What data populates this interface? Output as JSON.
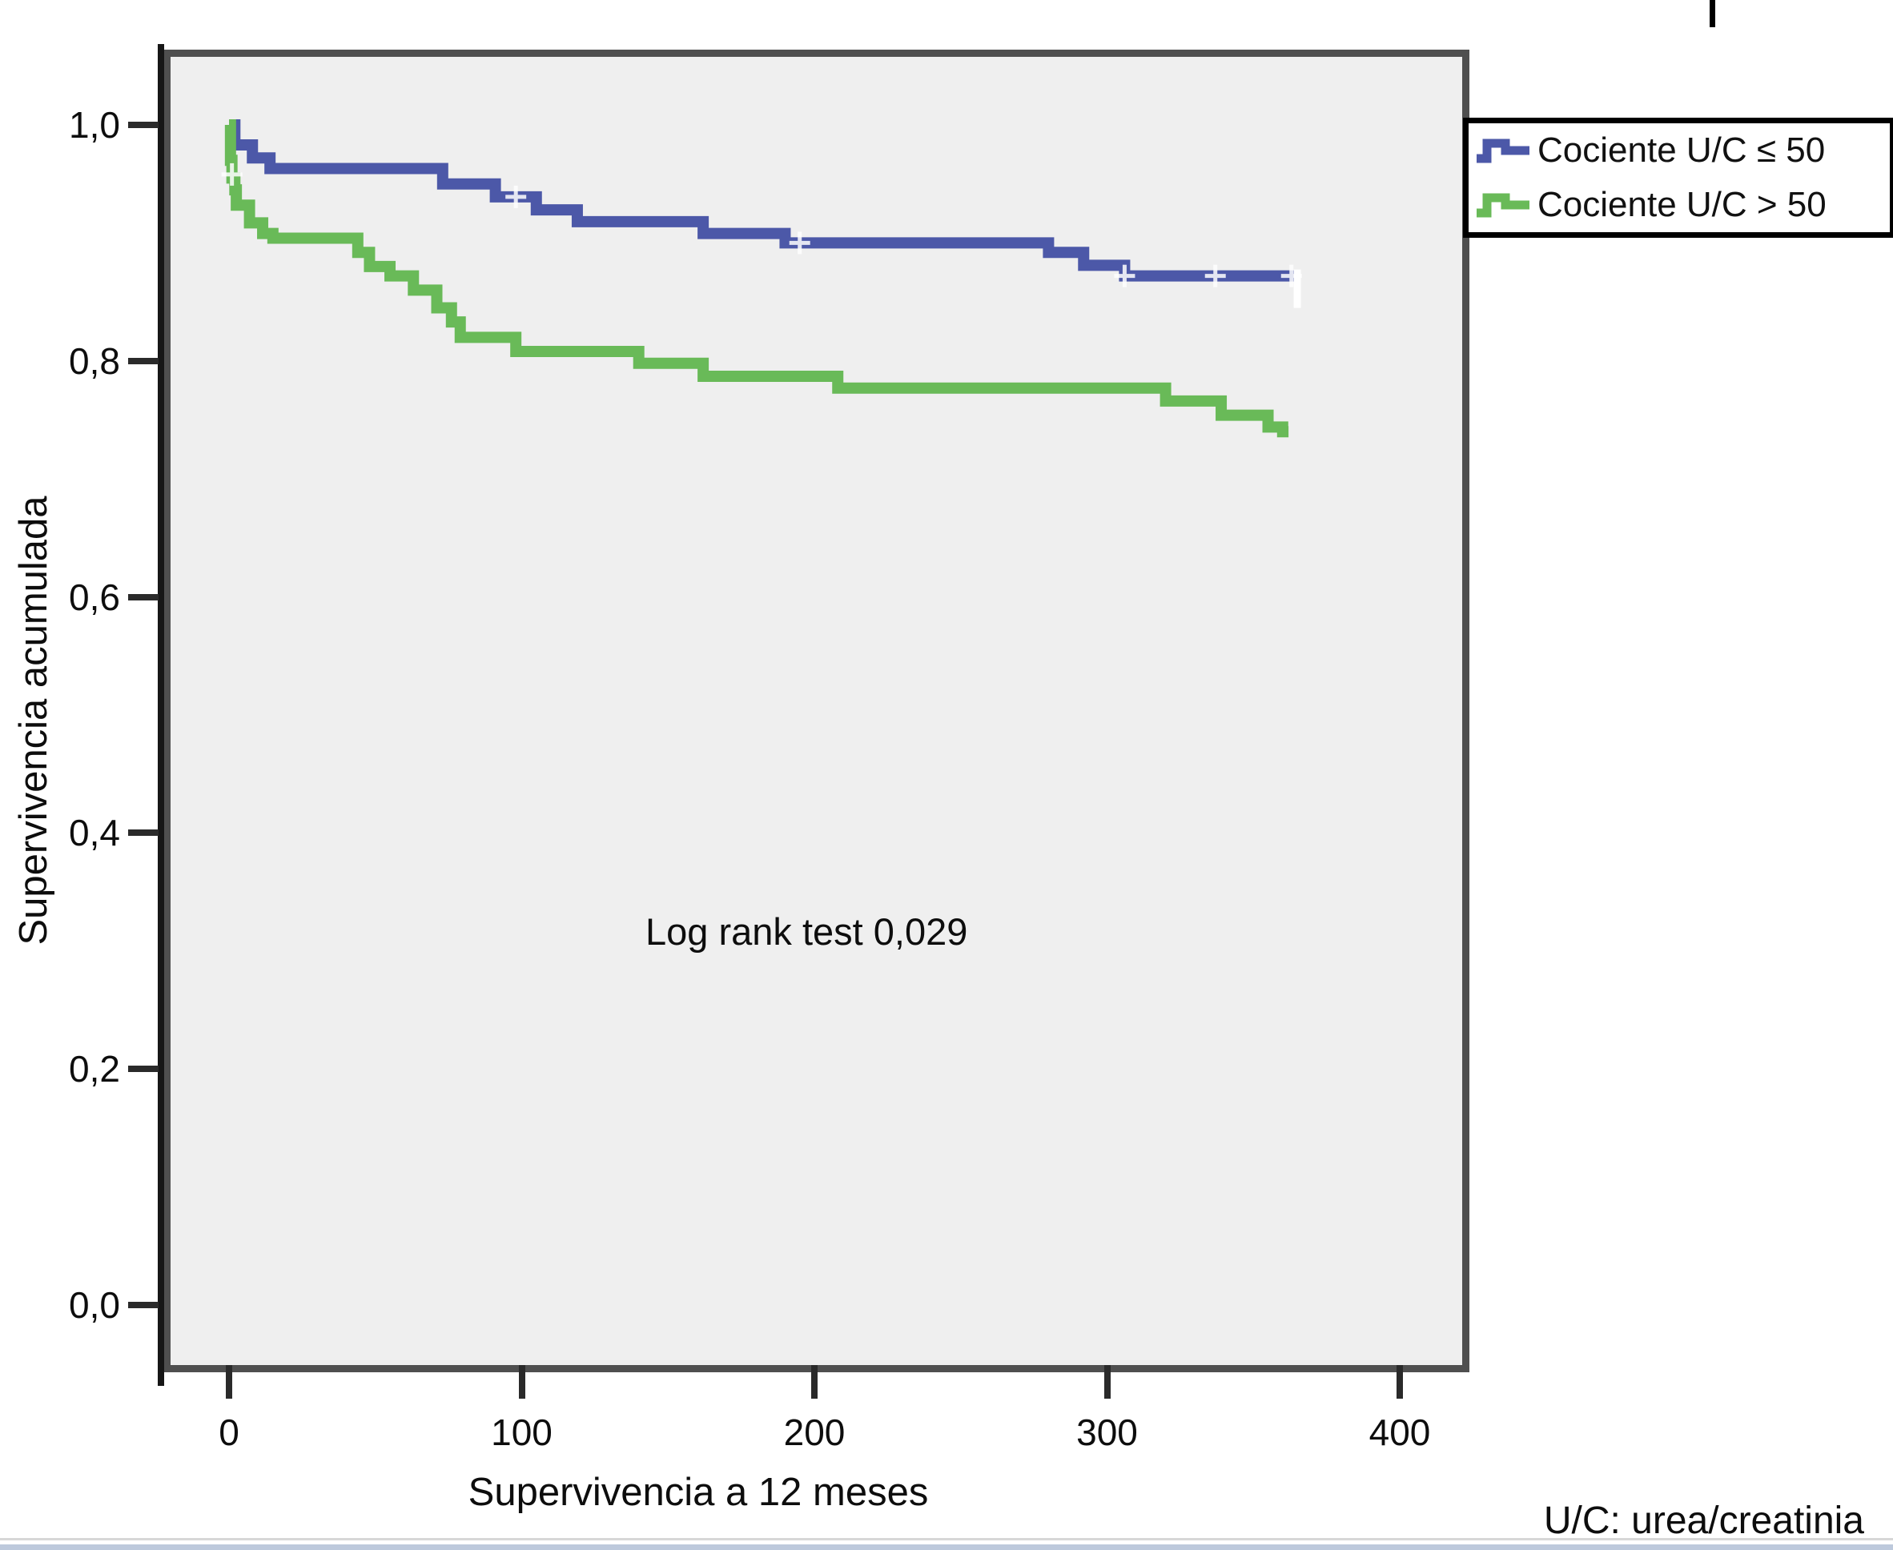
{
  "axes": {
    "y_title": "Supervivencia acumulada",
    "x_title": "Supervivencia a 12 meses",
    "y_ticks": [
      {
        "label": "1,0",
        "value": 1.0
      },
      {
        "label": "0,8",
        "value": 0.8
      },
      {
        "label": "0,6",
        "value": 0.6
      },
      {
        "label": "0,4",
        "value": 0.4
      },
      {
        "label": "0,2",
        "value": 0.2
      },
      {
        "label": "0,0",
        "value": 0.0
      }
    ],
    "x_ticks": [
      {
        "label": "0",
        "value": 0
      },
      {
        "label": "100",
        "value": 100
      },
      {
        "label": "200",
        "value": 200
      },
      {
        "label": "300",
        "value": 300
      },
      {
        "label": "400",
        "value": 400
      }
    ]
  },
  "annotation": "Log rank test 0,029",
  "footnote": "U/C: urea/creatinia",
  "legend": {
    "items": [
      {
        "label": "Cociente U/C ≤ 50",
        "color": "#4C58A8"
      },
      {
        "label": "Cociente U/C > 50",
        "color": "#69BA58"
      }
    ]
  },
  "chart_data": {
    "type": "line",
    "subtype": "kaplan-meier-step",
    "title": "",
    "xlabel": "Supervivencia a 12 meses",
    "ylabel": "Supervivencia acumulada",
    "xlim": [
      0,
      400
    ],
    "ylim": [
      0.0,
      1.0
    ],
    "grid": false,
    "legend_position": "top-right",
    "plot_background": "#efefef",
    "series": [
      {
        "name": "Cociente U/C ≤ 50",
        "color": "#4C58A8",
        "end_x": 365,
        "steps": [
          [
            0,
            1.0
          ],
          [
            2,
            0.983
          ],
          [
            8,
            0.972
          ],
          [
            14,
            0.963
          ],
          [
            73,
            0.95
          ],
          [
            91,
            0.939
          ],
          [
            105,
            0.928
          ],
          [
            119,
            0.918
          ],
          [
            162,
            0.908
          ],
          [
            190,
            0.9
          ],
          [
            280,
            0.892
          ],
          [
            292,
            0.881
          ],
          [
            306,
            0.872
          ]
        ],
        "censored": [
          [
            98,
            0.939
          ],
          [
            195,
            0.9
          ],
          [
            306,
            0.872
          ],
          [
            337,
            0.872
          ],
          [
            363,
            0.872
          ]
        ]
      },
      {
        "name": "Cociente U/C > 50",
        "color": "#69BA58",
        "end_x": 362,
        "steps": [
          [
            0,
            1.0
          ],
          [
            0.5,
            0.97
          ],
          [
            1,
            0.955
          ],
          [
            2,
            0.945
          ],
          [
            2.5,
            0.932
          ],
          [
            7,
            0.917
          ],
          [
            11.5,
            0.908
          ],
          [
            15,
            0.904
          ],
          [
            44,
            0.892
          ],
          [
            48,
            0.88
          ],
          [
            55,
            0.872
          ],
          [
            63,
            0.86
          ],
          [
            71,
            0.845
          ],
          [
            76,
            0.833
          ],
          [
            79,
            0.82
          ],
          [
            98,
            0.808
          ],
          [
            140,
            0.798
          ],
          [
            162,
            0.787
          ],
          [
            208,
            0.777
          ],
          [
            320,
            0.766
          ],
          [
            339,
            0.754
          ],
          [
            355,
            0.744
          ],
          [
            360,
            0.74
          ]
        ],
        "censored": [
          [
            1,
            0.958
          ]
        ]
      }
    ],
    "annotations": [
      {
        "text": "Log rank test 0,029",
        "x": 198,
        "y": 0.3
      }
    ]
  }
}
